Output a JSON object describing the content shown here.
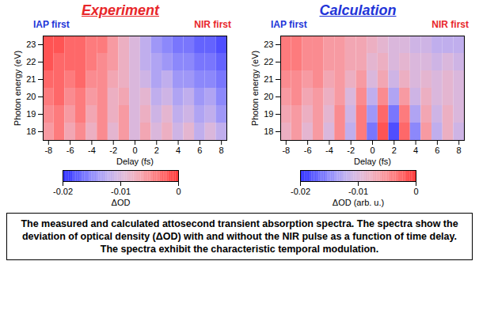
{
  "chart_data": [
    {
      "type": "heatmap",
      "title": "Experiment",
      "color": "#e8262a",
      "annotations": [
        {
          "text": "IAP first",
          "color": "#2234d8"
        },
        {
          "text": "NIR first",
          "color": "#e8262a"
        }
      ],
      "x_label": "Delay (fs)",
      "y_label": "Photon energy (eV)",
      "x_edges": [
        -8.5,
        -7.5,
        -6.5,
        -5.5,
        -4.5,
        -3.5,
        -2.5,
        -1.5,
        -0.5,
        0.5,
        1.5,
        2.5,
        3.5,
        4.5,
        5.5,
        6.5,
        7.5,
        8.5
      ],
      "y_edges": [
        17.5,
        18.5,
        19.5,
        20.5,
        21.5,
        22.5,
        23.5
      ],
      "xlim": [
        -8.5,
        8.5
      ],
      "ylim": [
        17.5,
        23.5
      ],
      "xticks": [
        -8,
        -6,
        -4,
        -2,
        0,
        2,
        4,
        6,
        8
      ],
      "yticks": [
        18,
        19,
        20,
        21,
        22,
        23
      ],
      "values": [
        [
          -0.006,
          -0.004,
          -0.007,
          -0.005,
          -0.008,
          -0.005,
          -0.009,
          -0.006,
          -0.01,
          -0.007,
          -0.01,
          -0.008,
          -0.011,
          -0.009,
          -0.012,
          -0.01,
          -0.012
        ],
        [
          -0.005,
          -0.004,
          -0.006,
          -0.004,
          -0.007,
          -0.005,
          -0.008,
          -0.006,
          -0.01,
          -0.008,
          -0.011,
          -0.009,
          -0.012,
          -0.011,
          -0.013,
          -0.012,
          -0.014
        ],
        [
          -0.004,
          -0.003,
          -0.005,
          -0.004,
          -0.006,
          -0.005,
          -0.008,
          -0.007,
          -0.01,
          -0.009,
          -0.012,
          -0.011,
          -0.013,
          -0.012,
          -0.014,
          -0.013,
          -0.015
        ],
        [
          -0.003,
          -0.003,
          -0.004,
          -0.003,
          -0.005,
          -0.005,
          -0.007,
          -0.008,
          -0.01,
          -0.011,
          -0.013,
          -0.012,
          -0.014,
          -0.014,
          -0.015,
          -0.015,
          -0.016
        ],
        [
          -0.002,
          -0.003,
          -0.003,
          -0.003,
          -0.004,
          -0.005,
          -0.006,
          -0.008,
          -0.01,
          -0.012,
          -0.013,
          -0.014,
          -0.015,
          -0.015,
          -0.016,
          -0.016,
          -0.017
        ],
        [
          -0.002,
          -0.002,
          -0.003,
          -0.003,
          -0.004,
          -0.004,
          -0.006,
          -0.008,
          -0.01,
          -0.012,
          -0.014,
          -0.015,
          -0.016,
          -0.016,
          -0.017,
          -0.017,
          -0.018
        ]
      ],
      "colorbar": {
        "label": "ΔOD",
        "range": [
          -0.02,
          0
        ],
        "ticks": [
          -0.02,
          -0.01,
          0
        ]
      }
    },
    {
      "type": "heatmap",
      "title": "Calculation",
      "color": "#2234d8",
      "annotations": [
        {
          "text": "IAP first",
          "color": "#2234d8"
        },
        {
          "text": "NIR first",
          "color": "#e8262a"
        }
      ],
      "x_label": "Delay (fs)",
      "y_label": "Photon energy (eV)",
      "x_edges": [
        -8.5,
        -7.5,
        -6.5,
        -5.5,
        -4.5,
        -3.5,
        -2.5,
        -1.5,
        -0.5,
        0.5,
        1.5,
        2.5,
        3.5,
        4.5,
        5.5,
        6.5,
        7.5,
        8.5
      ],
      "y_edges": [
        17.5,
        18.5,
        19.5,
        20.5,
        21.5,
        22.5,
        23.5
      ],
      "xlim": [
        -8.5,
        8.5
      ],
      "ylim": [
        17.5,
        23.5
      ],
      "xticks": [
        -8,
        -6,
        -4,
        -2,
        0,
        2,
        4,
        6,
        8
      ],
      "yticks": [
        18,
        19,
        20,
        21,
        22,
        23
      ],
      "values": [
        [
          -0.008,
          -0.006,
          -0.009,
          -0.006,
          -0.01,
          -0.005,
          -0.012,
          -0.004,
          -0.016,
          -0.002,
          -0.018,
          -0.003,
          -0.015,
          -0.006,
          -0.012,
          -0.008,
          -0.011
        ],
        [
          -0.007,
          -0.006,
          -0.008,
          -0.006,
          -0.009,
          -0.005,
          -0.011,
          -0.004,
          -0.014,
          -0.003,
          -0.016,
          -0.004,
          -0.013,
          -0.007,
          -0.011,
          -0.008,
          -0.01
        ],
        [
          -0.006,
          -0.005,
          -0.007,
          -0.006,
          -0.008,
          -0.006,
          -0.01,
          -0.005,
          -0.012,
          -0.005,
          -0.013,
          -0.006,
          -0.011,
          -0.008,
          -0.01,
          -0.009,
          -0.01
        ],
        [
          -0.005,
          -0.005,
          -0.006,
          -0.005,
          -0.007,
          -0.006,
          -0.008,
          -0.006,
          -0.01,
          -0.007,
          -0.011,
          -0.008,
          -0.01,
          -0.009,
          -0.01,
          -0.009,
          -0.01
        ],
        [
          -0.004,
          -0.004,
          -0.005,
          -0.005,
          -0.006,
          -0.006,
          -0.007,
          -0.007,
          -0.009,
          -0.008,
          -0.01,
          -0.009,
          -0.01,
          -0.01,
          -0.011,
          -0.01,
          -0.011
        ],
        [
          -0.004,
          -0.004,
          -0.005,
          -0.005,
          -0.006,
          -0.006,
          -0.007,
          -0.007,
          -0.008,
          -0.009,
          -0.01,
          -0.01,
          -0.011,
          -0.011,
          -0.012,
          -0.012,
          -0.012
        ]
      ],
      "colorbar": {
        "label": "ΔOD (arb. u.)",
        "range": [
          -0.02,
          0
        ],
        "ticks": [
          -0.02,
          -0.01,
          0
        ]
      }
    }
  ],
  "caption": "The measured and calculated attosecond transient absorption spectra. The spectra show the deviation of optical density (ΔOD) with and without the NIR pulse as a function of time delay. The spectra exhibit the characteristic temporal modulation."
}
